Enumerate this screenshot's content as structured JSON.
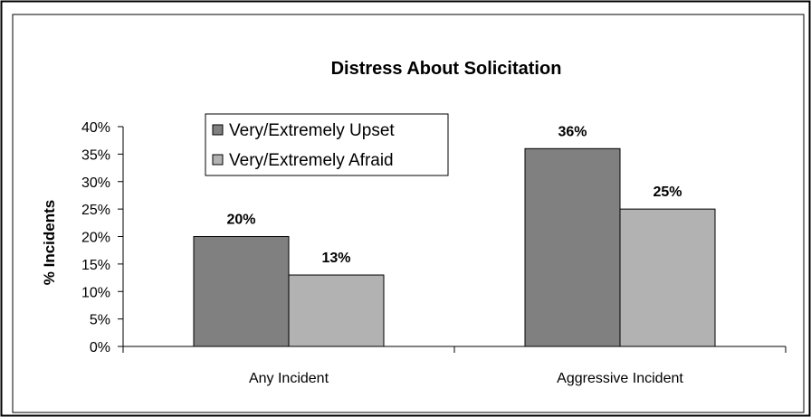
{
  "chart_data": {
    "type": "bar",
    "title": "Distress About Solicitation",
    "xlabel": "",
    "ylabel": "% Incidents",
    "categories": [
      "Any Incident",
      "Aggressive Incident"
    ],
    "series": [
      {
        "name": "Very/Extremely Upset",
        "values": [
          20,
          36
        ],
        "color": "#808080"
      },
      {
        "name": "Very/Extremely Afraid",
        "values": [
          13,
          25
        ],
        "color": "#b2b2b2"
      }
    ],
    "data_labels": [
      [
        "20%",
        "36%"
      ],
      [
        "13%",
        "25%"
      ]
    ],
    "ylim": [
      0,
      40
    ],
    "yticks": [
      0,
      5,
      10,
      15,
      20,
      25,
      30,
      35,
      40
    ],
    "ytick_labels": [
      "0%",
      "5%",
      "10%",
      "15%",
      "20%",
      "25%",
      "30%",
      "35%",
      "40%"
    ],
    "grid": false,
    "legend_position": "top-left inside plot"
  }
}
